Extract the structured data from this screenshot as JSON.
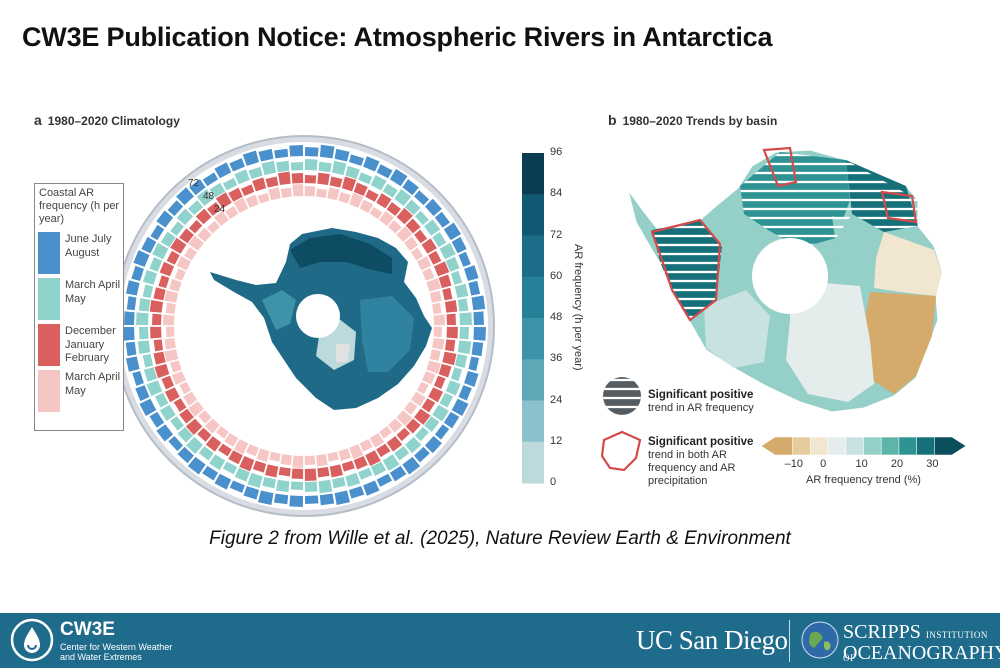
{
  "title": "CW3E Publication Notice: Atmospheric Rivers in Antarctica",
  "panel_a": {
    "letter": "a",
    "title": "1980–2020 Climatology",
    "ring_labels": [
      "72",
      "48",
      "24"
    ],
    "legend": {
      "header": "Coastal AR frequency (h per year)",
      "items": [
        {
          "label": "June July August",
          "color": "#4a90cc"
        },
        {
          "label": "March April May",
          "color": "#8fd3cc"
        },
        {
          "label": "December January February",
          "color": "#d9605f"
        },
        {
          "label": "March April May",
          "color": "#f6c6c4"
        }
      ]
    },
    "colorbar": {
      "label": "AR frequency (h per year)",
      "ticks": [
        "96",
        "84",
        "72",
        "60",
        "48",
        "36",
        "24",
        "12",
        "0"
      ],
      "colors": [
        "#0b3d52",
        "#115872",
        "#1b6d88",
        "#277f98",
        "#3d93a8",
        "#5ea8b7",
        "#8ac1ca",
        "#bcd9dc",
        "#e0e2e2"
      ]
    }
  },
  "panel_b": {
    "letter": "b",
    "title": "1980–2020 Trends by basin",
    "legend": {
      "hatch_label_bold": "Significant positive",
      "hatch_label": "trend in AR frequency",
      "outline_label_bold": "Significant positive",
      "outline_label": "trend in both AR frequency and AR precipitation"
    },
    "colorbar": {
      "label": "AR frequency trend (%)",
      "ticks": [
        "–10",
        "0",
        "10",
        "20",
        "30"
      ],
      "colors": [
        "#d4ab6a",
        "#e6cc9c",
        "#f1e6cf",
        "#e5ecec",
        "#c7e2e0",
        "#94cfc8",
        "#5db5aa",
        "#2f9394",
        "#15707a",
        "#0b4f5c"
      ]
    }
  },
  "caption": "Figure 2 from Wille et al. (2025), Nature Review Earth & Environment",
  "footer": {
    "cw3e_name": "CW3E",
    "cw3e_sub": "Center for Western Weather and Water Extremes",
    "ucsd": "UC San Diego",
    "scripps_line1": "SCRIPPS",
    "scripps_small": "INSTITUTION OF",
    "scripps_line2": "OCEANOGRAPHY",
    "brand_color": "#1f6b8c"
  }
}
